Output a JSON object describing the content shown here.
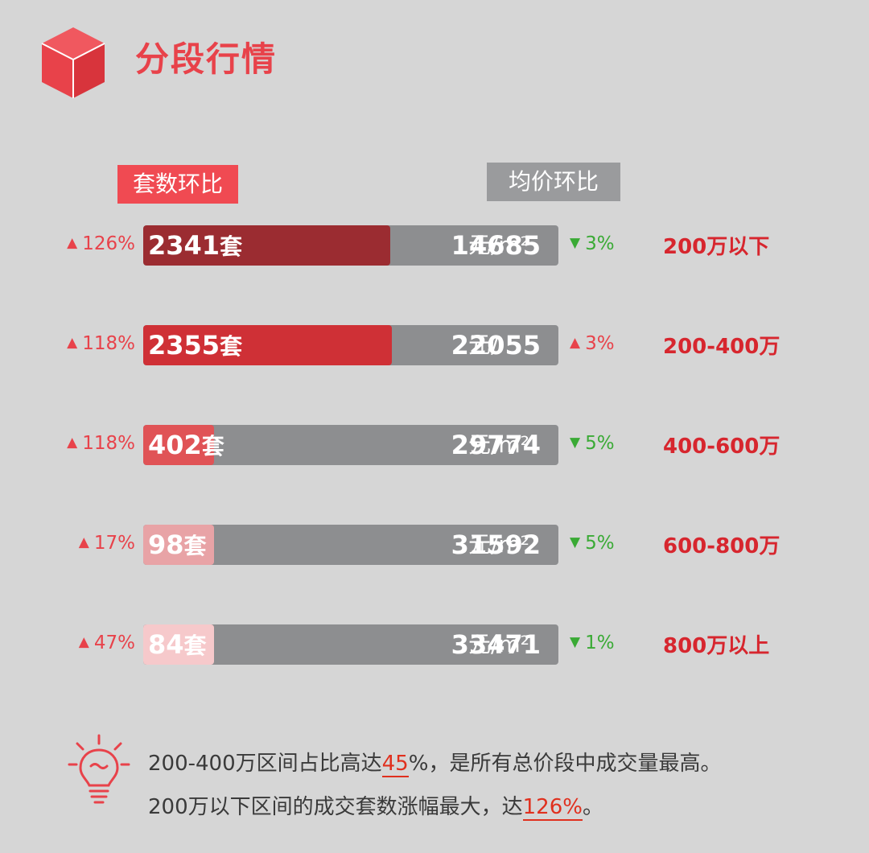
{
  "header": {
    "title": "分段行情",
    "icon": "cube-icon",
    "accent_color": "#e8424a"
  },
  "legend": {
    "count_label": "套数环比",
    "price_label": "均价环比"
  },
  "chart_data": {
    "type": "bar",
    "categories": [
      "200万以下",
      "200-400万",
      "400-600万",
      "600-800万",
      "800万以上"
    ],
    "series": [
      {
        "name": "套数环比",
        "values": [
          2341,
          2355,
          402,
          98,
          84
        ]
      }
    ],
    "rows": [
      {
        "range": "200万以下",
        "count": 2341,
        "count_text": "2341",
        "count_unit": "套",
        "count_change": "126%",
        "count_dir": "up",
        "price_text": "14685",
        "price_unit": "元/m²",
        "price_change": "3%",
        "price_dir": "down",
        "color": "#9b2c31"
      },
      {
        "range": "200-400万",
        "count": 2355,
        "count_text": "2355",
        "count_unit": "套",
        "count_change": "118%",
        "count_dir": "up",
        "price_text": "22055",
        "price_unit": "元/",
        "price_change": "3%",
        "price_dir": "up",
        "color": "#cf3036"
      },
      {
        "range": "400-600万",
        "count": 402,
        "count_text": "402",
        "count_unit": "套",
        "count_change": "118%",
        "count_dir": "up",
        "price_text": "29774",
        "price_unit": "元/m²",
        "price_change": "5%",
        "price_dir": "down",
        "color": "#e05356"
      },
      {
        "range": "600-800万",
        "count": 98,
        "count_text": "98",
        "count_unit": "套",
        "count_change": "17%",
        "count_dir": "up",
        "price_text": "31592",
        "price_unit": "元/m²",
        "price_change": "5%",
        "price_dir": "down",
        "color": "#e8a3a6"
      },
      {
        "range": "800万以上",
        "count": 84,
        "count_text": "84",
        "count_unit": "套",
        "count_change": "47%",
        "count_dir": "up",
        "price_text": "33471",
        "price_unit": "元/m²",
        "price_change": "1%",
        "price_dir": "down",
        "color": "#f6c9cb"
      }
    ],
    "colors": {
      "up": "#e8424a",
      "down": "#3aaa35",
      "track": "#8d8e90"
    }
  },
  "notes": {
    "icon": "lightbulb-icon",
    "line1_before": "200-400万区间占比高达",
    "line1_highlight": "45",
    "line1_after": "%，是所有总价段中成交量最高。",
    "line2_before": "200万以下区间的成交套数涨幅最大，达",
    "line2_highlight": "126%",
    "line2_after": "。"
  }
}
